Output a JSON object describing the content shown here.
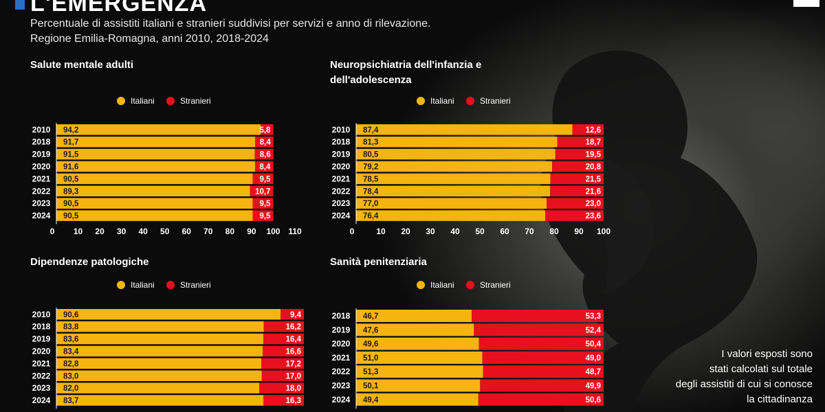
{
  "header": {
    "title": "L'EMERGENZA",
    "subtitle_lines": [
      "Percentuale di assistiti italiani e stranieri suddivisi per servizi e anno di rilevazione.",
      "Regione Emilia-Romagna, anni 2010, 2018-2024"
    ]
  },
  "legend": {
    "italiani": "Italiani",
    "stranieri": "Stranieri"
  },
  "colors": {
    "italiani": "#f5b40f",
    "stranieri": "#e8101e",
    "label_dark": "#1a1a1a"
  },
  "note_lines": [
    "I valori esposti sono",
    "stati calcolati sul totale",
    "degli assistiti di cui si conosce",
    "la cittadinanza"
  ],
  "chart_data": [
    {
      "type": "bar",
      "stacked": true,
      "orientation": "horizontal",
      "title": "Salute mentale adulti",
      "categories": [
        "2010",
        "2018",
        "2019",
        "2020",
        "2021",
        "2022",
        "2023",
        "2024"
      ],
      "series": [
        {
          "name": "Italiani",
          "values": [
            94.2,
            91.7,
            91.5,
            91.6,
            90.5,
            89.3,
            90.5,
            90.5
          ]
        },
        {
          "name": "Stranieri",
          "values": [
            5.8,
            8.4,
            8.6,
            8.4,
            9.5,
            10.7,
            9.5,
            9.5
          ]
        }
      ],
      "xlim": [
        0,
        110
      ],
      "xticks": [
        "0",
        "10",
        "20",
        "30",
        "40",
        "50",
        "60",
        "70",
        "80",
        "90",
        "100",
        "110"
      ],
      "legend_position": "top"
    },
    {
      "type": "bar",
      "stacked": true,
      "orientation": "horizontal",
      "title": "Neuropsichiatria dell'infanzia e dell'adolescenza",
      "categories": [
        "2010",
        "2018",
        "2019",
        "2020",
        "2021",
        "2022",
        "2023",
        "2024"
      ],
      "series": [
        {
          "name": "Italiani",
          "values": [
            87.4,
            81.3,
            80.5,
            79.2,
            78.5,
            78.4,
            77.0,
            76.4
          ]
        },
        {
          "name": "Stranieri",
          "values": [
            12.6,
            18.7,
            19.5,
            20.8,
            21.5,
            21.6,
            23.0,
            23.6
          ]
        }
      ],
      "xlim": [
        0,
        100
      ],
      "xticks": [
        "0",
        "10",
        "20",
        "30",
        "40",
        "50",
        "60",
        "70",
        "80",
        "90",
        "100"
      ],
      "legend_position": "top"
    },
    {
      "type": "bar",
      "stacked": true,
      "orientation": "horizontal",
      "title": "Dipendenze patologiche",
      "categories": [
        "2010",
        "2018",
        "2019",
        "2020",
        "2021",
        "2022",
        "2023",
        "2024"
      ],
      "series": [
        {
          "name": "Italiani",
          "values": [
            90.6,
            83.8,
            83.6,
            83.4,
            82.8,
            83.0,
            82.0,
            83.7
          ]
        },
        {
          "name": "Stranieri",
          "values": [
            9.4,
            16.2,
            16.4,
            16.6,
            17.2,
            17.0,
            18.0,
            16.3
          ]
        }
      ],
      "xlim": [
        0,
        100
      ],
      "legend_position": "top"
    },
    {
      "type": "bar",
      "stacked": true,
      "orientation": "horizontal",
      "title": "Sanità penitenziaria",
      "categories": [
        "2018",
        "2019",
        "2020",
        "2021",
        "2022",
        "2023",
        "2024"
      ],
      "series": [
        {
          "name": "Italiani",
          "values": [
            46.7,
            47.6,
            49.6,
            51.0,
            51.3,
            50.1,
            49.4
          ]
        },
        {
          "name": "Stranieri",
          "values": [
            53.3,
            52.4,
            50.4,
            49.0,
            48.7,
            49.9,
            50.6
          ]
        }
      ],
      "xlim": [
        0,
        100
      ],
      "legend_position": "top"
    }
  ]
}
